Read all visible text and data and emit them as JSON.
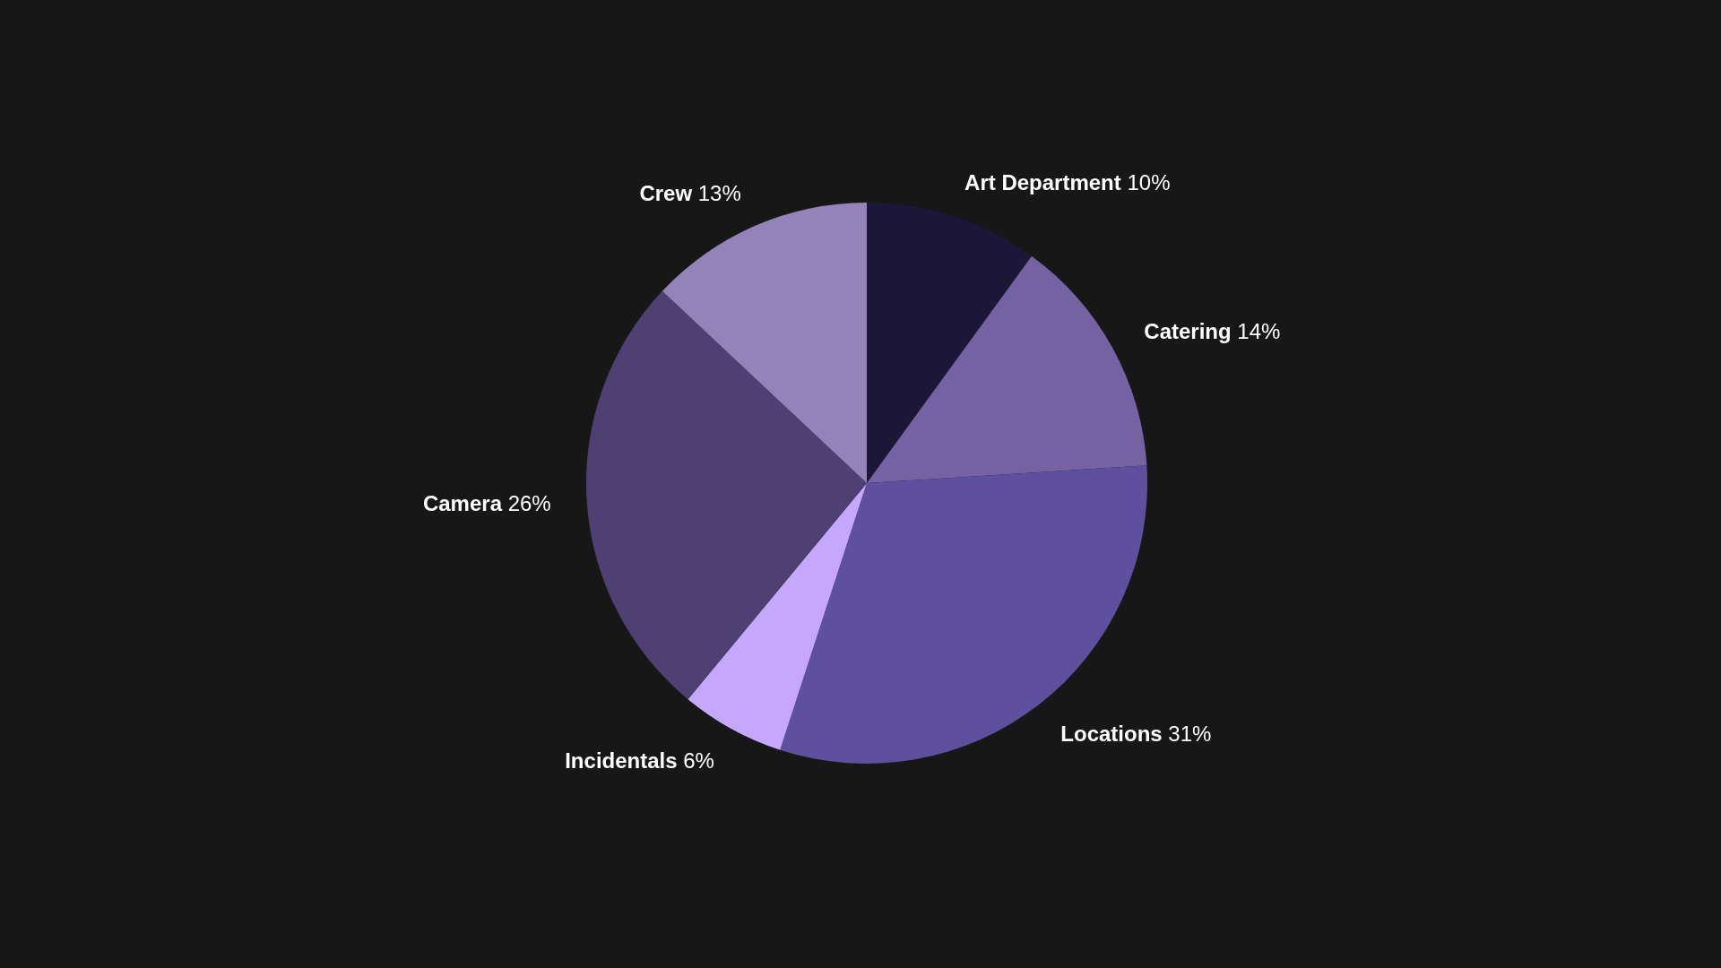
{
  "chart_data": {
    "type": "pie",
    "categories": [
      "Art Department",
      "Catering",
      "Locations",
      "Incidentals",
      "Camera",
      "Crew"
    ],
    "values": [
      10,
      14,
      31,
      6,
      26,
      13
    ],
    "value_labels": [
      "10%",
      "14%",
      "31%",
      "6%",
      "26%",
      "13%"
    ],
    "colors": [
      "#1c1738",
      "#7462a3",
      "#5e509e",
      "#c5a8fc",
      "#4f4073",
      "#9483b9"
    ],
    "legend": false
  }
}
